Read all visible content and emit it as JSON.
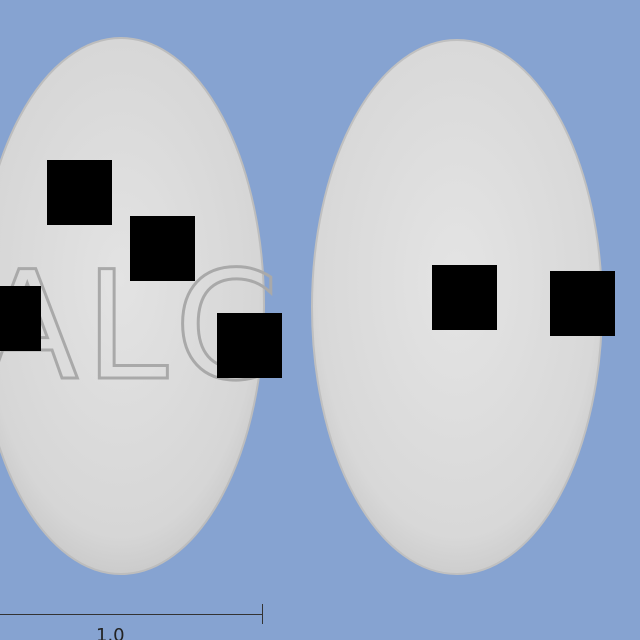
{
  "scene": {
    "background_color": "#86a3d1",
    "pill_color": "#d9d9d9",
    "pill_edge_color": "#bfbfbf",
    "redaction_color": "#000000"
  },
  "left_pill": {
    "imprint": "ALC"
  },
  "right_pill": {
    "imprint": ""
  },
  "scale_bar": {
    "label": "1.0"
  }
}
